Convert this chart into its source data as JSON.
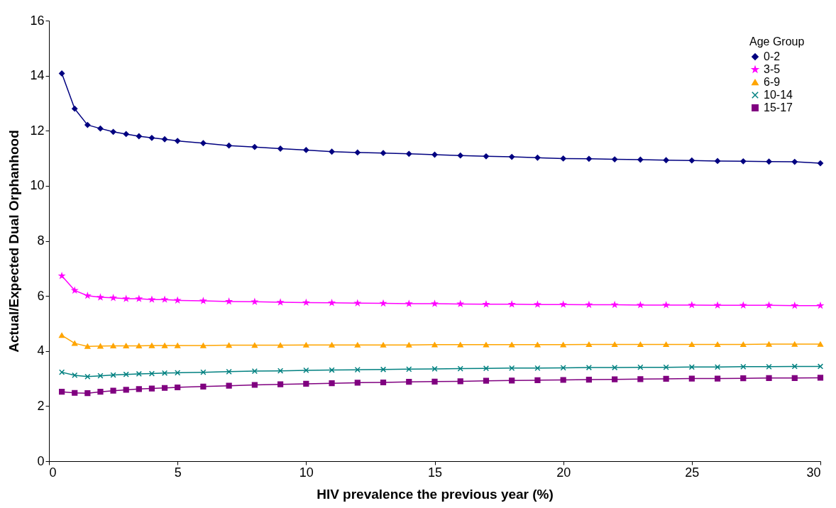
{
  "chart_data": {
    "type": "line",
    "xlabel": "HIV prevalence the previous year (%)",
    "ylabel": "Actual/Expected Dual Orphanhood",
    "legend_title": "Age Group",
    "legend": "top right",
    "grid": false,
    "x": [
      0.5,
      1,
      1.5,
      2,
      2.5,
      3,
      3.5,
      4,
      4.5,
      5,
      6,
      7,
      8,
      9,
      10,
      11,
      12,
      13,
      14,
      15,
      16,
      17,
      18,
      19,
      20,
      21,
      22,
      23,
      24,
      25,
      26,
      27,
      28,
      29,
      30
    ],
    "xlim": [
      0,
      30
    ],
    "xticks": [
      0,
      5,
      10,
      15,
      20,
      25,
      30
    ],
    "ylim": [
      0,
      16
    ],
    "yticks": [
      0,
      2,
      4,
      6,
      8,
      10,
      12,
      14,
      16
    ],
    "series": [
      {
        "name": "0-2",
        "color": "#000080",
        "marker": "diamond",
        "values": [
          14.08,
          12.8,
          12.21,
          12.08,
          11.96,
          11.88,
          11.8,
          11.74,
          11.69,
          11.63,
          11.55,
          11.46,
          11.41,
          11.35,
          11.3,
          11.24,
          11.21,
          11.19,
          11.16,
          11.13,
          11.1,
          11.07,
          11.05,
          11.02,
          10.99,
          10.98,
          10.96,
          10.95,
          10.93,
          10.92,
          10.9,
          10.89,
          10.88,
          10.87,
          10.82
        ]
      },
      {
        "name": "3-5",
        "color": "#ff00ff",
        "marker": "star",
        "values": [
          6.73,
          6.2,
          6.01,
          5.95,
          5.93,
          5.9,
          5.9,
          5.87,
          5.87,
          5.84,
          5.82,
          5.8,
          5.79,
          5.77,
          5.76,
          5.75,
          5.74,
          5.73,
          5.72,
          5.72,
          5.71,
          5.7,
          5.7,
          5.69,
          5.69,
          5.68,
          5.68,
          5.67,
          5.67,
          5.67,
          5.66,
          5.66,
          5.66,
          5.65,
          5.65
        ]
      },
      {
        "name": "6-9",
        "color": "#ffa500",
        "marker": "triangle",
        "values": [
          4.57,
          4.28,
          4.17,
          4.18,
          4.19,
          4.19,
          4.19,
          4.2,
          4.2,
          4.2,
          4.2,
          4.21,
          4.21,
          4.21,
          4.22,
          4.22,
          4.22,
          4.22,
          4.22,
          4.23,
          4.23,
          4.23,
          4.23,
          4.23,
          4.23,
          4.24,
          4.24,
          4.24,
          4.24,
          4.24,
          4.24,
          4.24,
          4.25,
          4.25,
          4.25
        ]
      },
      {
        "name": "10-14",
        "color": "#008080",
        "marker": "cross",
        "values": [
          3.23,
          3.12,
          3.07,
          3.1,
          3.13,
          3.15,
          3.17,
          3.18,
          3.2,
          3.21,
          3.23,
          3.25,
          3.27,
          3.28,
          3.3,
          3.31,
          3.32,
          3.33,
          3.34,
          3.35,
          3.36,
          3.37,
          3.38,
          3.38,
          3.39,
          3.4,
          3.4,
          3.41,
          3.41,
          3.42,
          3.42,
          3.43,
          3.43,
          3.44,
          3.44
        ]
      },
      {
        "name": "15-17",
        "color": "#800080",
        "marker": "square",
        "values": [
          2.52,
          2.48,
          2.47,
          2.52,
          2.56,
          2.59,
          2.62,
          2.64,
          2.66,
          2.68,
          2.71,
          2.74,
          2.77,
          2.79,
          2.81,
          2.83,
          2.85,
          2.86,
          2.88,
          2.89,
          2.9,
          2.92,
          2.93,
          2.94,
          2.95,
          2.96,
          2.97,
          2.98,
          2.99,
          3.0,
          3.0,
          3.01,
          3.02,
          3.02,
          3.03
        ]
      }
    ]
  }
}
